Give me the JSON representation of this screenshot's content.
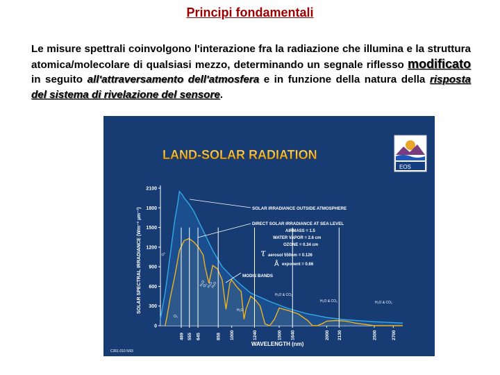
{
  "page": {
    "title": "Principi fondamentali",
    "para": {
      "p1": "Le misure spettrali coinvolgono l'interazione fra la radiazione che illumina e la struttura atomica/molecolare di qualsiasi mezzo, determinando un segnale riflesso ",
      "w_modificato": "modificato",
      "p2": " in seguito ",
      "w_attraversamento": "all'attraversamento dell'atmosfera",
      "p3": " e in funzione della natura della ",
      "w_risposta": "risposta del sistema di rivelazione del ",
      "w_sensore": "sensore",
      "p4": "."
    }
  },
  "figure": {
    "title": "LAND-SOLAR RADIATION",
    "logo_text": "EOS",
    "ylabel": "SOLAR SPECTRAL IRRADIANCE (Wm⁻² µm⁻¹)",
    "xlabel": "WAVELENGTH (nm)",
    "code": "C351.010 5/93",
    "legend": {
      "outside": "SOLAR IRRADIANCE OUTSIDE ATMOSPHERE",
      "direct": "DIRECT SOLAR IRRADIANCE AT SEA LEVEL",
      "airmass": "AIRMASS = 1.5",
      "water": "WATER VAPOR = 2.6 cm",
      "ozone": "OZONE = 0.34 cm",
      "tau": "aerosol 550nm = 0.126",
      "tau_symbol": "τ",
      "angstrom": "exponent = 0.66",
      "angstrom_symbol": "Å",
      "modis": "MODIS BANDS"
    },
    "absorption_labels": [
      "O₃",
      "H₂O",
      "O₂",
      "H₂O",
      "H₂O",
      "H₂O",
      "H₂O & CO₂",
      "H₂O & CO₂",
      "H₂O & CO₂",
      "O₃"
    ]
  },
  "chart_data": {
    "type": "area",
    "title": "LAND-SOLAR RADIATION",
    "xlabel": "WAVELENGTH (nm)",
    "ylabel": "SOLAR SPECTRAL IRRADIANCE (Wm⁻² µm⁻¹)",
    "xlim": [
      250,
      2800
    ],
    "ylim": [
      0,
      2100
    ],
    "y_ticks": [
      0,
      300,
      600,
      900,
      1200,
      1500,
      1800,
      2100
    ],
    "x_ticks": [
      469,
      555,
      645,
      858,
      1000,
      1240,
      1500,
      1640,
      2000,
      2130,
      2500,
      2700
    ],
    "modis_bands": [
      469,
      555,
      645,
      858,
      1240,
      1640,
      2130
    ],
    "colors": {
      "outside": "#35a9e8",
      "sea_level": "#f0b21e",
      "modis": "#ffffff",
      "background": "#173b73"
    },
    "series": [
      {
        "name": "SOLAR IRRADIANCE OUTSIDE ATMOSPHERE",
        "x": [
          250,
          300,
          350,
          400,
          430,
          450,
          480,
          500,
          550,
          600,
          650,
          700,
          800,
          900,
          1000,
          1100,
          1200,
          1400,
          1600,
          1800,
          2000,
          2200,
          2500,
          2800
        ],
        "y": [
          100,
          500,
          1050,
          1600,
          1850,
          2050,
          2000,
          1950,
          1860,
          1750,
          1600,
          1450,
          1150,
          900,
          750,
          620,
          500,
          370,
          260,
          180,
          125,
          90,
          60,
          40
        ]
      },
      {
        "name": "DIRECT SOLAR IRRADIANCE AT SEA LEVEL",
        "x": [
          300,
          320,
          350,
          400,
          450,
          500,
          550,
          600,
          650,
          700,
          720,
          760,
          800,
          850,
          900,
          940,
          980,
          1000,
          1050,
          1100,
          1130,
          1150,
          1200,
          1250,
          1300,
          1350,
          1400,
          1450,
          1500,
          1550,
          1600,
          1700,
          1800,
          1850,
          1900,
          1950,
          2000,
          2100,
          2200,
          2300,
          2400,
          2500,
          2700,
          2800
        ],
        "y": [
          0,
          150,
          400,
          750,
          1150,
          1300,
          1330,
          1280,
          1200,
          1080,
          900,
          650,
          920,
          870,
          700,
          250,
          650,
          700,
          600,
          520,
          100,
          250,
          450,
          390,
          300,
          30,
          0,
          100,
          270,
          250,
          230,
          180,
          80,
          0,
          0,
          30,
          70,
          80,
          70,
          40,
          20,
          0,
          0,
          0
        ]
      }
    ]
  }
}
